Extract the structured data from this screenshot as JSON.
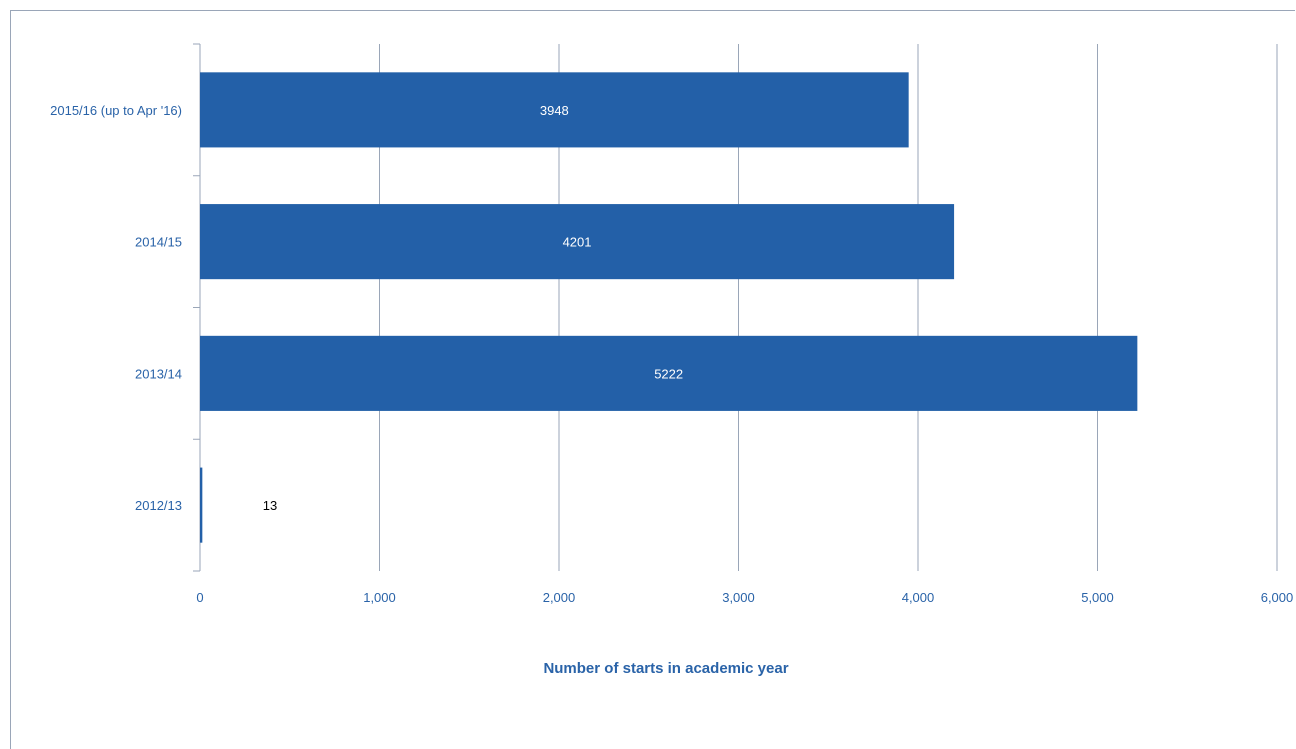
{
  "chart_data": {
    "type": "bar",
    "orientation": "horizontal",
    "categories": [
      "2015/16 (up to Apr '16)",
      "2014/15",
      "2013/14",
      "2012/13"
    ],
    "values": [
      3948,
      4201,
      5222,
      13
    ],
    "data_labels": [
      "3948",
      "4201",
      "5222",
      "13"
    ],
    "xlabel": "Number of starts in academic year",
    "ylabel": "",
    "xlim": [
      0,
      6000
    ],
    "x_ticks": [
      0,
      1000,
      2000,
      3000,
      4000,
      5000,
      6000
    ],
    "x_tick_labels": [
      "0",
      "1,000",
      "2,000",
      "3,000",
      "4,000",
      "5,000",
      "6,000"
    ],
    "grid": "vertical",
    "legend": "none",
    "colors": {
      "bar": "#2360a8",
      "grid": "#9aa6b8",
      "text": "#2a63a8",
      "label_inside": "#ffffff",
      "label_outside": "#000000"
    }
  }
}
